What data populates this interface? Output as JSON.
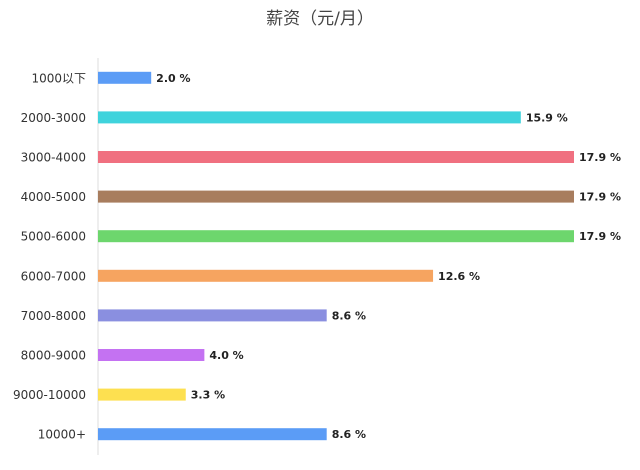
{
  "chart_data": {
    "type": "hbar",
    "title": "薪资（元/月）",
    "categories": [
      "1000以下",
      "2000-3000",
      "3000-4000",
      "4000-5000",
      "5000-6000",
      "6000-7000",
      "7000-8000",
      "8000-9000",
      "9000-10000",
      "10000+"
    ],
    "values": [
      2.0,
      15.9,
      17.9,
      17.9,
      17.9,
      12.6,
      8.6,
      4.0,
      3.3,
      8.6
    ],
    "value_labels": [
      "2.0 %",
      "15.9 %",
      "17.9 %",
      "17.9 %",
      "17.9 %",
      "12.6 %",
      "8.6 %",
      "4.0 %",
      "3.3 %",
      "8.6 %"
    ],
    "colors": [
      "#5b9cf6",
      "#3fd3dc",
      "#f07080",
      "#a87d5e",
      "#6dd66d",
      "#f6a460",
      "#8a8fe0",
      "#c472f2",
      "#fde050",
      "#5b9cf6"
    ]
  }
}
